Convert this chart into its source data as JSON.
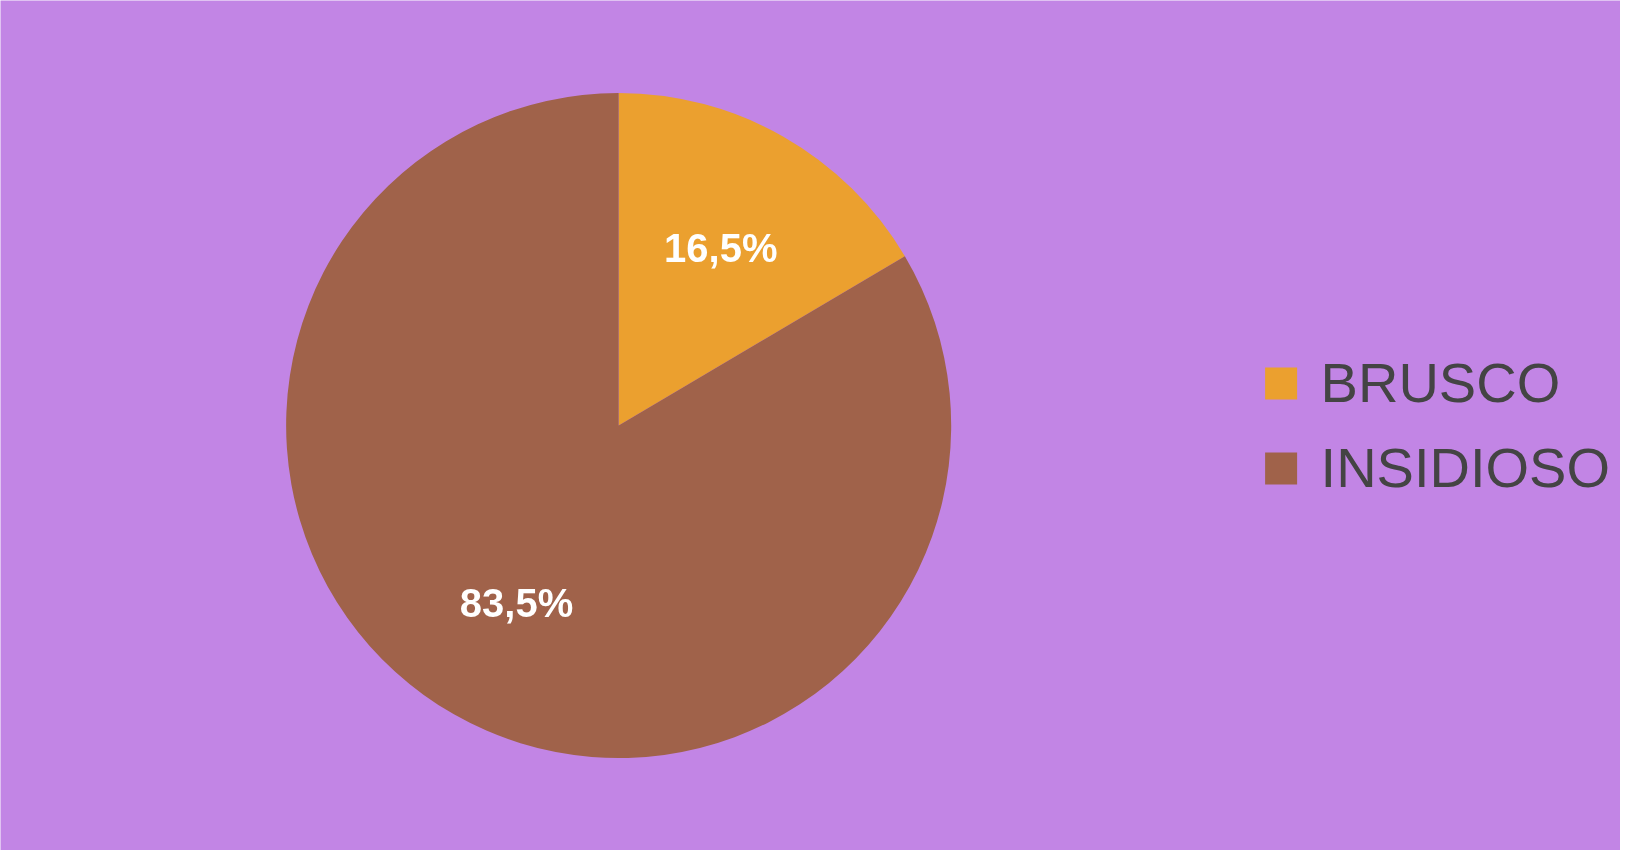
{
  "chart_data": {
    "type": "pie",
    "categories": [
      "BRUSCO",
      "INSIDIOSO"
    ],
    "values": [
      16.5,
      83.5
    ],
    "colors": [
      "#eba02f",
      "#a0624a"
    ],
    "value_labels": [
      "16,5%",
      "83,5%"
    ],
    "legend": "right"
  }
}
